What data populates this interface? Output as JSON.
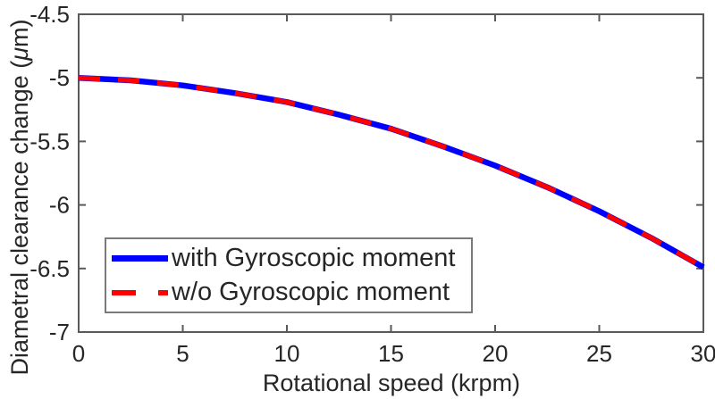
{
  "chart_data": {
    "type": "line",
    "title": "",
    "xlabel": "Rotational speed (krpm)",
    "ylabel": {
      "full": "Diametral clearance change (μm)",
      "prefix": "Diametral clearance change (",
      "mu": "μ",
      "suffix": "m)"
    },
    "xlim": [
      0,
      30
    ],
    "ylim": [
      -7,
      -4.5
    ],
    "xticks": [
      0,
      5,
      10,
      15,
      20,
      25,
      30
    ],
    "xtick_labels": [
      "0",
      "5",
      "10",
      "15",
      "20",
      "25",
      "30"
    ],
    "yticks": [
      -4.5,
      -5,
      -5.5,
      -6,
      -6.5,
      -7
    ],
    "ytick_labels": [
      "-4.5",
      "-5",
      "-5.5",
      "-6",
      "-6.5",
      "-7"
    ],
    "grid": "off",
    "box": "on",
    "tick_direction": "in",
    "x": [
      0,
      2.5,
      5,
      7.5,
      10,
      12.5,
      15,
      17.5,
      20,
      22.5,
      25,
      27.5,
      30
    ],
    "series": [
      {
        "name": "with Gyroscopic moment",
        "color": "#0000ff",
        "style": "solid",
        "line_width": 6.5,
        "values": [
          -5.0,
          -5.02,
          -5.06,
          -5.12,
          -5.19,
          -5.29,
          -5.4,
          -5.54,
          -5.69,
          -5.86,
          -6.05,
          -6.26,
          -6.49
        ]
      },
      {
        "name": "w/o Gyroscopic moment",
        "color": "#ff0000",
        "style": "dashed",
        "line_width": 5.5,
        "values": [
          -5.0,
          -5.02,
          -5.06,
          -5.12,
          -5.19,
          -5.29,
          -5.4,
          -5.54,
          -5.69,
          -5.86,
          -6.05,
          -6.26,
          -6.49
        ]
      }
    ],
    "legend": {
      "position": "bottom-left",
      "entries": [
        "with Gyroscopic moment",
        "w/o Gyroscopic moment"
      ]
    },
    "colors": {
      "axis": "#595959",
      "text": "#262626",
      "background": "#ffffff"
    }
  }
}
